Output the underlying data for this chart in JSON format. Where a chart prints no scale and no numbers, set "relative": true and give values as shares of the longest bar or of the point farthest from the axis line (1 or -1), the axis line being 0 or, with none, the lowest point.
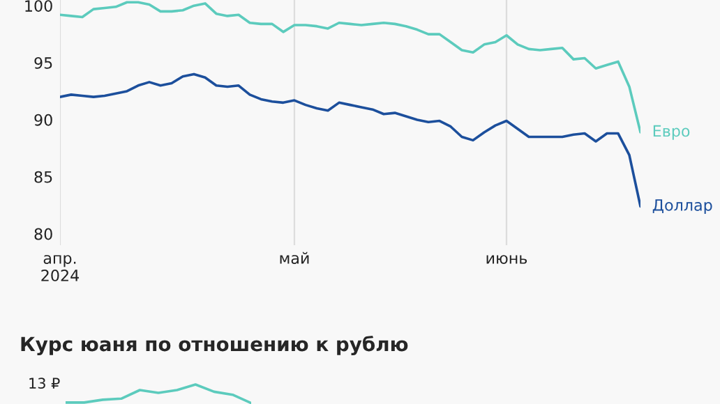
{
  "chart_data": [
    {
      "type": "line",
      "categories": [
        "апр.\n2024",
        null,
        null,
        null,
        null,
        null,
        null,
        null,
        null,
        null,
        null,
        null,
        null,
        null,
        null,
        null,
        null,
        null,
        null,
        null,
        null,
        "май",
        null,
        null,
        null,
        null,
        null,
        null,
        null,
        null,
        null,
        null,
        null,
        null,
        null,
        null,
        null,
        null,
        null,
        null,
        "июнь",
        null,
        null,
        null,
        null,
        null,
        null,
        null,
        null,
        null,
        null,
        null,
        null
      ],
      "series": [
        {
          "name": "Евро",
          "color": "#5ccbbd",
          "values": [
            99.2,
            99.1,
            99.0,
            99.7,
            99.8,
            99.9,
            100.3,
            100.3,
            100.1,
            99.5,
            99.5,
            99.6,
            100.0,
            100.2,
            99.3,
            99.1,
            99.2,
            98.5,
            98.4,
            98.4,
            97.7,
            98.3,
            98.3,
            98.2,
            98.0,
            98.5,
            98.4,
            98.3,
            98.4,
            98.5,
            98.4,
            98.2,
            97.9,
            97.5,
            97.5,
            96.8,
            96.1,
            95.9,
            96.6,
            96.8,
            97.4,
            96.6,
            96.2,
            96.1,
            96.2,
            96.3,
            95.3,
            95.4,
            94.5,
            94.8,
            95.1,
            92.9,
            88.9
          ]
        },
        {
          "name": "Доллар",
          "color": "#1c4f9c",
          "values": [
            92.0,
            92.2,
            92.1,
            92.0,
            92.1,
            92.3,
            92.5,
            93.0,
            93.3,
            93.0,
            93.2,
            93.8,
            94.0,
            93.7,
            93.0,
            92.9,
            93.0,
            92.2,
            91.8,
            91.6,
            91.5,
            91.7,
            91.3,
            91.0,
            90.8,
            91.5,
            91.3,
            91.1,
            90.9,
            90.5,
            90.6,
            90.3,
            90.0,
            89.8,
            89.9,
            89.4,
            88.5,
            88.2,
            88.9,
            89.5,
            89.9,
            89.2,
            88.5,
            88.5,
            88.5,
            88.5,
            88.7,
            88.8,
            88.1,
            88.8,
            88.8,
            86.9,
            82.4
          ]
        }
      ],
      "ylim": [
        79.0,
        100.5
      ],
      "yticks": [
        80,
        85,
        90,
        95,
        100
      ],
      "grid": "x",
      "legend": false,
      "marker": "none",
      "line_style": "solid"
    },
    {
      "type": "line",
      "title": "Курс юаня по отношению к рублю",
      "annotations": [
        "13 ₽"
      ],
      "relative": true,
      "categories": [
        null,
        null,
        null,
        null,
        null,
        null,
        null,
        null,
        null,
        null,
        null
      ],
      "series": [
        {
          "color": "#5ccbbd",
          "values": [
            0.03,
            0.03,
            0.18,
            0.24,
            0.7,
            0.55,
            0.7,
            1,
            0.61,
            0.45,
            0
          ]
        }
      ],
      "marker": "none",
      "line_style": "solid"
    }
  ]
}
